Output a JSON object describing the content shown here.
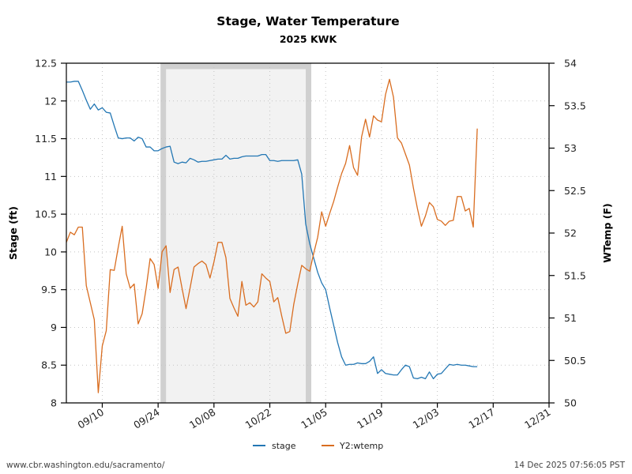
{
  "chart_data": {
    "type": "line",
    "title": "Stage, Water Temperature",
    "subtitle": "2025 KWK",
    "xlabel": "",
    "ylabel": "Stage (ft)",
    "y2label": "WTemp (F)",
    "xlim": [
      "09/01",
      "12/31"
    ],
    "ylim": [
      8,
      12.5
    ],
    "y2lim": [
      50,
      54
    ],
    "grid": true,
    "x_ticks": [
      "09/10",
      "09/24",
      "10/08",
      "10/22",
      "11/05",
      "11/19",
      "12/03",
      "12/17",
      "12/31"
    ],
    "y_ticks": [
      "8",
      "8.5",
      "9",
      "9.5",
      "10",
      "10.5",
      "11",
      "11.5",
      "12",
      "12.5"
    ],
    "y2_ticks": [
      "50",
      "50.5",
      "51",
      "51.5",
      "52",
      "52.5",
      "53",
      "53.5",
      "54"
    ],
    "shaded_region": {
      "start": "09/25",
      "end": "11/01"
    },
    "legend_position": "bottom-center",
    "x": [
      "09/01",
      "09/02",
      "09/03",
      "09/04",
      "09/05",
      "09/06",
      "09/07",
      "09/08",
      "09/09",
      "09/10",
      "09/11",
      "09/12",
      "09/13",
      "09/14",
      "09/15",
      "09/16",
      "09/17",
      "09/18",
      "09/19",
      "09/20",
      "09/21",
      "09/22",
      "09/23",
      "09/24",
      "09/25",
      "09/26",
      "09/27",
      "09/28",
      "09/29",
      "09/30",
      "10/01",
      "10/02",
      "10/03",
      "10/04",
      "10/05",
      "10/06",
      "10/07",
      "10/08",
      "10/09",
      "10/10",
      "10/11",
      "10/12",
      "10/13",
      "10/14",
      "10/15",
      "10/16",
      "10/17",
      "10/18",
      "10/19",
      "10/20",
      "10/21",
      "10/22",
      "10/23",
      "10/24",
      "10/25",
      "10/26",
      "10/27",
      "10/28",
      "10/29",
      "10/30",
      "10/31",
      "11/01",
      "11/02",
      "11/03",
      "11/04",
      "11/05",
      "11/06",
      "11/07",
      "11/08",
      "11/09",
      "11/10",
      "11/11",
      "11/12",
      "11/13",
      "11/14",
      "11/15",
      "11/16",
      "11/17",
      "11/18",
      "11/19",
      "11/20",
      "11/21",
      "11/22",
      "11/23",
      "11/24",
      "11/25",
      "11/26",
      "11/27",
      "11/28",
      "11/29",
      "11/30",
      "12/01",
      "12/02",
      "12/03",
      "12/04",
      "12/05",
      "12/06",
      "12/07",
      "12/08",
      "12/09",
      "12/10",
      "12/11",
      "12/12",
      "12/13"
    ],
    "series": [
      {
        "name": "stage",
        "axis": "y",
        "color": "#2377b4",
        "values": [
          12.25,
          12.25,
          12.26,
          12.26,
          12.14,
          12.01,
          11.89,
          11.96,
          11.88,
          11.91,
          11.85,
          11.84,
          11.67,
          11.51,
          11.5,
          11.51,
          11.51,
          11.47,
          11.52,
          11.5,
          11.39,
          11.39,
          11.34,
          11.34,
          11.37,
          11.39,
          11.4,
          11.19,
          11.17,
          11.19,
          11.18,
          11.24,
          11.22,
          11.19,
          11.2,
          11.2,
          11.21,
          11.22,
          11.23,
          11.23,
          11.28,
          11.23,
          11.24,
          11.24,
          11.26,
          11.27,
          11.27,
          11.27,
          11.27,
          11.29,
          11.29,
          11.21,
          11.21,
          11.2,
          11.21,
          11.21,
          11.21,
          11.21,
          11.22,
          11.03,
          10.37,
          10.11,
          9.92,
          9.73,
          9.59,
          9.5,
          9.26,
          9.03,
          8.8,
          8.61,
          8.5,
          8.51,
          8.51,
          8.53,
          8.52,
          8.52,
          8.55,
          8.61,
          8.39,
          8.44,
          8.39,
          8.38,
          8.37,
          8.37,
          8.44,
          8.5,
          8.48,
          8.33,
          8.32,
          8.34,
          8.32,
          8.41,
          8.32,
          8.38,
          8.39,
          8.45,
          8.51,
          8.5,
          8.51,
          8.5,
          8.5,
          8.49,
          8.48,
          8.48
        ]
      },
      {
        "name": "Y2:wtemp",
        "axis": "y2",
        "color": "#d96d20",
        "values": [
          51.89,
          52.01,
          51.98,
          52.07,
          52.07,
          51.38,
          51.18,
          50.98,
          50.12,
          50.67,
          50.85,
          51.57,
          51.56,
          51.83,
          52.08,
          51.52,
          51.35,
          51.4,
          50.93,
          51.05,
          51.35,
          51.7,
          51.63,
          51.35,
          51.78,
          51.85,
          51.3,
          51.57,
          51.6,
          51.35,
          51.11,
          51.35,
          51.6,
          51.64,
          51.67,
          51.63,
          51.47,
          51.66,
          51.89,
          51.89,
          51.71,
          51.23,
          51.12,
          51.02,
          51.43,
          51.15,
          51.18,
          51.13,
          51.19,
          51.52,
          51.47,
          51.43,
          51.19,
          51.24,
          51.02,
          50.82,
          50.84,
          51.16,
          51.4,
          51.62,
          51.58,
          51.55,
          51.76,
          51.95,
          52.25,
          52.08,
          52.23,
          52.37,
          52.54,
          52.7,
          52.82,
          53.03,
          52.77,
          52.68,
          53.13,
          53.34,
          53.13,
          53.38,
          53.33,
          53.31,
          53.63,
          53.81,
          53.6,
          53.12,
          53.06,
          52.93,
          52.8,
          52.53,
          52.29,
          52.08,
          52.2,
          52.36,
          52.31,
          52.16,
          52.14,
          52.09,
          52.14,
          52.15,
          52.43,
          52.43,
          52.26,
          52.29,
          52.07,
          53.23
        ]
      }
    ],
    "legend": [
      {
        "label": "stage",
        "color": "#2377b4"
      },
      {
        "label": "Y2:wtemp",
        "color": "#d96d20"
      }
    ]
  },
  "footer": {
    "source_url": "www.cbr.washington.edu/sacramento/",
    "timestamp": "14 Dec 2025 07:56:05 PST"
  },
  "colors": {
    "shaded_fill": "#f2f2f2",
    "shaded_border": "#d0d0d0"
  }
}
